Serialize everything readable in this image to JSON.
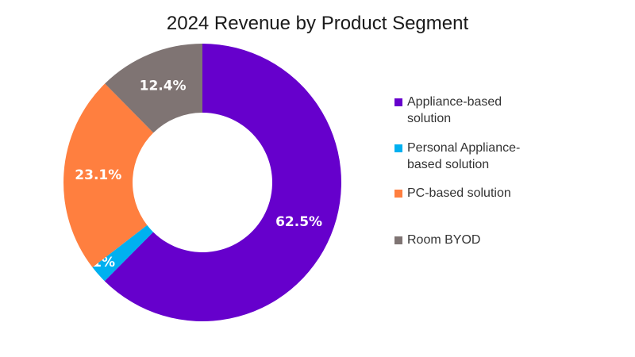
{
  "chart_data": {
    "type": "pie",
    "donut": true,
    "title": "2024 Revenue by Product Segment",
    "categories": [
      "Appliance-based solution",
      "Personal Appliance-based solution",
      "PC-based solution",
      "Room BYOD"
    ],
    "values": [
      62.5,
      2.1,
      23.1,
      12.4
    ],
    "labels": [
      "62.5%",
      "2.1%",
      "23.1%",
      "12.4%"
    ],
    "colors": [
      "#6600CC",
      "#00B0F0",
      "#FF7F3F",
      "#7F7473"
    ],
    "legend_position": "right",
    "legend_text": [
      "Appliance-based solution",
      "Personal Appliance-\nbased solution",
      "PC-based solution",
      "Room BYOD"
    ]
  }
}
